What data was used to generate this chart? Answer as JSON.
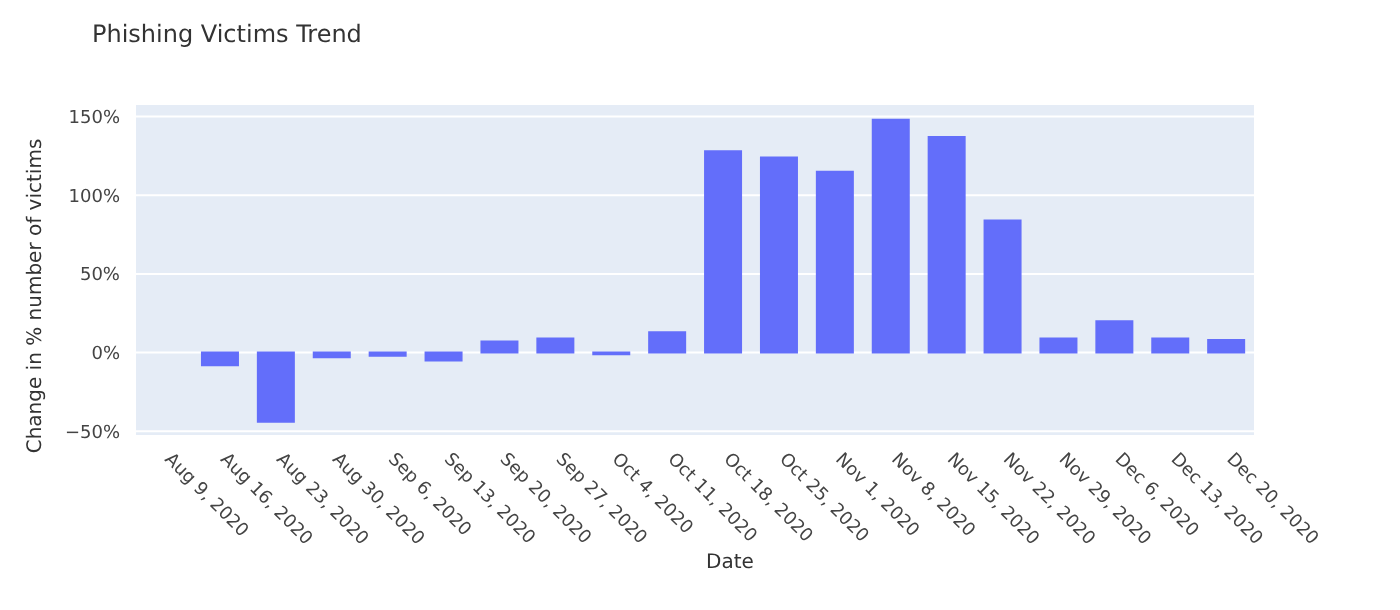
{
  "chart_data": {
    "type": "bar",
    "title": "Phishing Victims Trend",
    "xlabel": "Date",
    "ylabel": "Change in % number of victims",
    "categories": [
      "Aug 9, 2020",
      "Aug 16, 2020",
      "Aug 23, 2020",
      "Aug 30, 2020",
      "Sep 6, 2020",
      "Sep 13, 2020",
      "Sep 20, 2020",
      "Sep 27, 2020",
      "Oct 4, 2020",
      "Oct 11, 2020",
      "Oct 18, 2020",
      "Oct 25, 2020",
      "Nov 1, 2020",
      "Nov 8, 2020",
      "Nov 15, 2020",
      "Nov 22, 2020",
      "Nov 29, 2020",
      "Dec 6, 2020",
      "Dec 13, 2020",
      "Dec 20, 2020"
    ],
    "values": [
      null,
      -8,
      -44,
      -3,
      -2,
      -5,
      7,
      9,
      -1,
      13,
      128,
      124,
      115,
      148,
      137,
      84,
      9,
      20,
      9,
      8
    ],
    "color": "#636efa",
    "ylim": [
      -53,
      158
    ],
    "yticks": [
      {
        "value": -50,
        "label": "−50%"
      },
      {
        "value": 0,
        "label": "0%"
      },
      {
        "value": 50,
        "label": "50%"
      },
      {
        "value": 100,
        "label": "100%"
      },
      {
        "value": 150,
        "label": "150%"
      }
    ],
    "grid": "y"
  }
}
